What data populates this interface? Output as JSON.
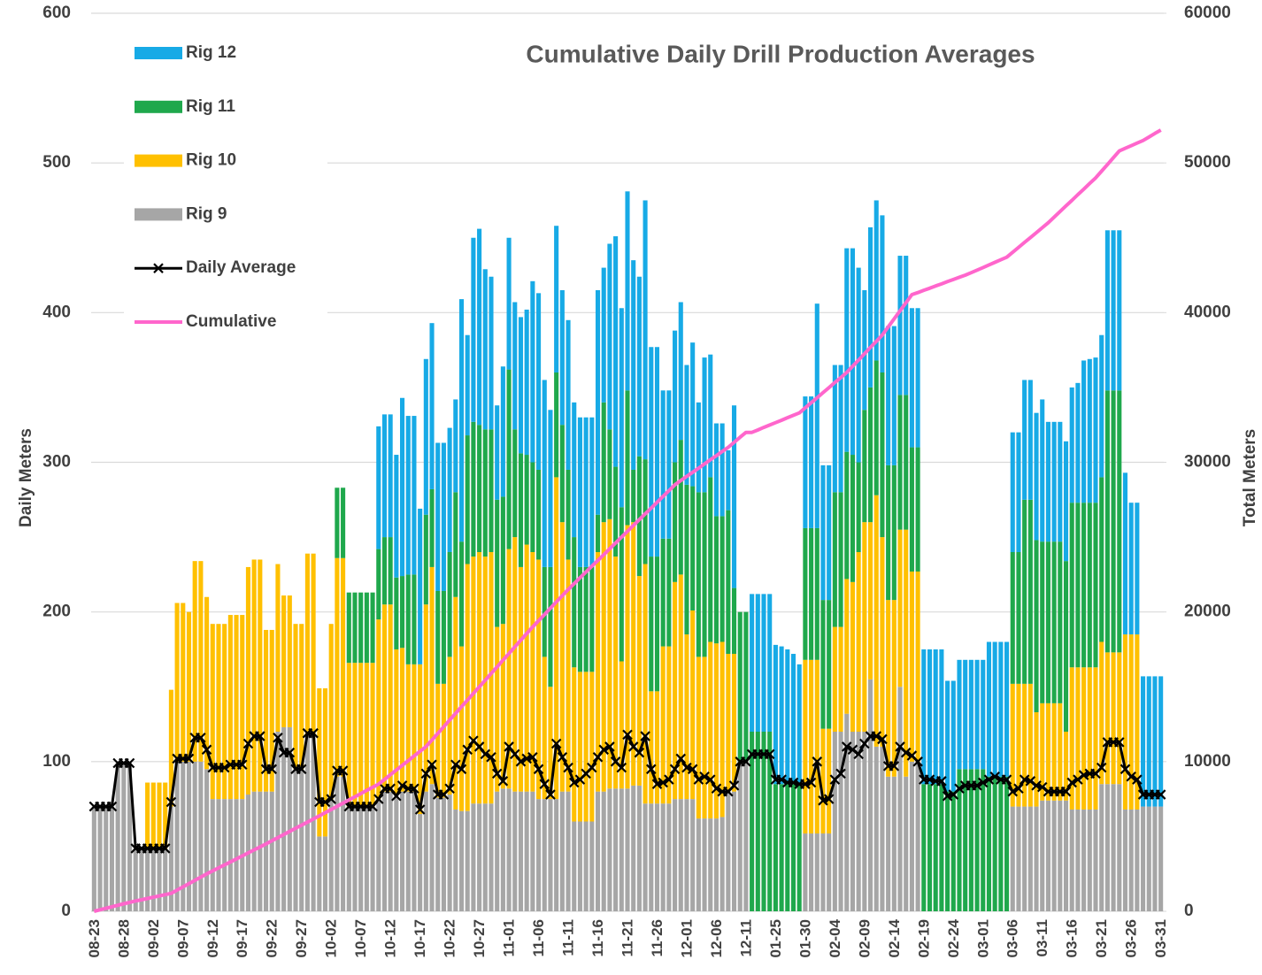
{
  "chart_data": {
    "type": "bar",
    "stacked": true,
    "title": "Cumulative Daily Drill Production Averages",
    "y_label": "Daily Meters",
    "y2_label": "Total Meters",
    "ylim": [
      0,
      600
    ],
    "yticks": [
      0,
      100,
      200,
      300,
      400,
      500,
      600
    ],
    "y2lim": [
      0,
      60000
    ],
    "y2ticks": [
      0,
      10000,
      20000,
      30000,
      40000,
      50000,
      60000
    ],
    "grid": true,
    "legend": "upper left",
    "categories": [
      "08-23",
      null,
      null,
      null,
      null,
      "08-28",
      null,
      null,
      null,
      null,
      "09-02",
      null,
      null,
      null,
      null,
      "09-07",
      null,
      null,
      null,
      null,
      "09-12",
      null,
      null,
      null,
      null,
      "09-17",
      null,
      null,
      null,
      null,
      "09-22",
      null,
      null,
      null,
      null,
      "09-27",
      null,
      null,
      null,
      null,
      "10-02",
      null,
      null,
      null,
      null,
      "10-07",
      null,
      null,
      null,
      null,
      "10-12",
      null,
      null,
      null,
      null,
      "10-17",
      null,
      null,
      null,
      null,
      "10-22",
      null,
      null,
      null,
      null,
      "10-27",
      null,
      null,
      null,
      null,
      "11-01",
      null,
      null,
      null,
      null,
      "11-06",
      null,
      null,
      null,
      null,
      "11-11",
      null,
      null,
      null,
      null,
      "11-16",
      null,
      null,
      null,
      null,
      "11-21",
      null,
      null,
      null,
      null,
      "11-26",
      null,
      null,
      null,
      null,
      "12-01",
      null,
      null,
      null,
      null,
      "12-06",
      null,
      null,
      null,
      null,
      "12-11",
      null,
      null,
      null,
      null,
      "01-25",
      null,
      null,
      null,
      null,
      "01-30",
      null,
      null,
      null,
      null,
      "02-04",
      null,
      null,
      null,
      null,
      "02-09",
      null,
      null,
      null,
      null,
      "02-14",
      null,
      null,
      null,
      null,
      "02-19",
      null,
      null,
      null,
      null,
      "02-24",
      null,
      null,
      null,
      null,
      "03-01",
      null,
      null,
      null,
      null,
      "03-06",
      null,
      null,
      null,
      null,
      "03-11",
      null,
      null,
      null,
      null,
      "03-16",
      null,
      null,
      null,
      null,
      "03-21",
      null,
      null,
      null,
      null,
      "03-26",
      null,
      null,
      null,
      null,
      "03-31"
    ],
    "series": [
      {
        "name": "Rig 12",
        "type": "bar",
        "color": "#17aae6",
        "values": [
          0,
          0,
          0,
          0,
          0,
          0,
          0,
          0,
          0,
          0,
          0,
          0,
          0,
          0,
          0,
          0,
          0,
          0,
          0,
          0,
          0,
          0,
          0,
          0,
          0,
          0,
          0,
          0,
          0,
          0,
          0,
          0,
          0,
          0,
          0,
          0,
          0,
          0,
          0,
          0,
          0,
          0,
          0,
          0,
          0,
          0,
          0,
          0,
          82,
          82,
          82,
          82,
          119,
          106,
          106,
          104,
          104,
          111,
          99,
          99,
          83,
          62,
          162,
          67,
          123,
          131,
          107,
          102,
          63,
          87,
          88,
          85,
          91,
          97,
          121,
          118,
          125,
          105,
          98,
          90,
          100,
          90,
          100,
          100,
          100,
          150,
          90,
          124,
          154,
          133,
          133,
          140,
          120,
          173,
          140,
          140,
          99,
          99,
          88,
          92,
          80,
          96,
          60,
          90,
          82,
          62,
          62,
          40,
          122,
          0,
          0,
          92,
          92,
          92,
          92,
          93,
          92,
          90,
          87,
          80,
          88,
          88,
          150,
          90,
          90,
          85,
          85,
          136,
          138,
          130,
          80,
          107,
          107,
          105,
          93,
          93,
          93,
          93,
          93,
          93,
          90,
          90,
          90,
          90,
          74,
          74,
          73,
          73,
          73,
          73,
          73,
          90,
          90,
          90,
          90,
          80,
          80,
          80,
          80,
          85,
          95,
          80,
          80,
          80,
          80,
          77,
          80,
          95,
          96,
          97,
          95,
          107,
          107,
          107,
          108,
          88,
          88,
          87,
          87,
          87,
          87
        ]
      },
      {
        "name": "Rig 11",
        "type": "bar",
        "color": "#1fa84c",
        "values": [
          0,
          0,
          0,
          0,
          0,
          0,
          0,
          0,
          0,
          0,
          0,
          0,
          0,
          0,
          0,
          0,
          0,
          0,
          0,
          0,
          0,
          0,
          0,
          0,
          0,
          0,
          0,
          0,
          0,
          0,
          0,
          0,
          0,
          0,
          0,
          0,
          0,
          0,
          0,
          0,
          0,
          47,
          47,
          47,
          47,
          47,
          47,
          47,
          47,
          45,
          45,
          48,
          48,
          60,
          60,
          0,
          60,
          52,
          62,
          62,
          70,
          70,
          70,
          86,
          90,
          85,
          85,
          82,
          85,
          85,
          120,
          72,
          76,
          60,
          60,
          60,
          60,
          80,
          70,
          65,
          60,
          87,
          70,
          70,
          70,
          25,
          80,
          60,
          60,
          103,
          90,
          35,
          80,
          70,
          90,
          90,
          72,
          72,
          80,
          90,
          100,
          83,
          110,
          110,
          110,
          85,
          84,
          96,
          44,
          100,
          100,
          120,
          120,
          120,
          120,
          85,
          85,
          85,
          85,
          85,
          88,
          88,
          88,
          86,
          86,
          90,
          90,
          85,
          85,
          60,
          75,
          90,
          90,
          110,
          90,
          90,
          90,
          90,
          83,
          83,
          85,
          85,
          85,
          85,
          80,
          80,
          95,
          95,
          95,
          95,
          95,
          90,
          90,
          90,
          90,
          88,
          88,
          123,
          123,
          115,
          108,
          108,
          108,
          108,
          114,
          110,
          110,
          110,
          110,
          110,
          110,
          175,
          175,
          175,
          0,
          0,
          0,
          0,
          0,
          0,
          0
        ]
      },
      {
        "name": "Rig 10",
        "type": "bar",
        "color": "#ffc000",
        "values": [
          0,
          0,
          0,
          0,
          0,
          0,
          0,
          0,
          0,
          44,
          44,
          44,
          44,
          78,
          106,
          106,
          100,
          134,
          134,
          115,
          117,
          117,
          117,
          123,
          123,
          123,
          152,
          155,
          155,
          108,
          108,
          112,
          88,
          88,
          97,
          97,
          121,
          121,
          99,
          99,
          117,
          146,
          146,
          96,
          96,
          96,
          96,
          96,
          120,
          125,
          125,
          97,
          96,
          85,
          85,
          100,
          125,
          145,
          76,
          76,
          92,
          142,
          110,
          165,
          165,
          168,
          165,
          168,
          110,
          110,
          160,
          170,
          150,
          165,
          160,
          160,
          95,
          75,
          215,
          180,
          155,
          103,
          100,
          100,
          100,
          160,
          180,
          180,
          155,
          85,
          176,
          176,
          140,
          160,
          75,
          75,
          105,
          105,
          145,
          150,
          110,
          126,
          108,
          108,
          118,
          117,
          117,
          92,
          92,
          0,
          0,
          0,
          0,
          0,
          0,
          0,
          0,
          0,
          0,
          0,
          116,
          116,
          116,
          70,
          70,
          70,
          70,
          90,
          100,
          120,
          140,
          105,
          168,
          140,
          118,
          118,
          105,
          165,
          127,
          127,
          0,
          0,
          0,
          0,
          0,
          0,
          0,
          0,
          0,
          0,
          0,
          0,
          0,
          0,
          0,
          82,
          82,
          82,
          82,
          63,
          65,
          65,
          65,
          65,
          46,
          95,
          95,
          95,
          95,
          95,
          95,
          88,
          88,
          88,
          117,
          117,
          117,
          0,
          0,
          0,
          0
        ]
      },
      {
        "name": "Rig 9",
        "type": "bar",
        "color": "#a6a6a6",
        "values": [
          70,
          70,
          70,
          70,
          99,
          99,
          99,
          42,
          42,
          42,
          42,
          42,
          42,
          70,
          100,
          100,
          100,
          100,
          100,
          95,
          75,
          75,
          75,
          75,
          75,
          75,
          78,
          80,
          80,
          80,
          80,
          120,
          123,
          123,
          95,
          95,
          118,
          118,
          50,
          50,
          75,
          90,
          90,
          70,
          70,
          70,
          70,
          70,
          75,
          80,
          80,
          78,
          80,
          80,
          80,
          65,
          80,
          85,
          76,
          76,
          78,
          68,
          67,
          67,
          72,
          72,
          72,
          72,
          80,
          82,
          82,
          80,
          80,
          80,
          80,
          75,
          75,
          75,
          75,
          80,
          80,
          60,
          60,
          60,
          60,
          80,
          80,
          82,
          82,
          82,
          82,
          84,
          84,
          72,
          72,
          72,
          72,
          72,
          75,
          75,
          75,
          75,
          62,
          62,
          62,
          62,
          63,
          80,
          80,
          100,
          100,
          0,
          0,
          0,
          0,
          0,
          0,
          0,
          0,
          0,
          52,
          52,
          52,
          52,
          52,
          120,
          120,
          132,
          120,
          120,
          120,
          155,
          110,
          110,
          90,
          90,
          150,
          90,
          100,
          100,
          0,
          0,
          0,
          0,
          0,
          0,
          0,
          0,
          0,
          0,
          0,
          0,
          0,
          0,
          0,
          70,
          70,
          70,
          70,
          70,
          74,
          74,
          74,
          74,
          74,
          68,
          68,
          68,
          68,
          68,
          85,
          85,
          85,
          85,
          68,
          68,
          68,
          70,
          70,
          70,
          70
        ]
      },
      {
        "name": "Daily Average",
        "type": "line",
        "marker": "x",
        "color": "#000000",
        "values": [
          70,
          70,
          70,
          70,
          99,
          99,
          99,
          42,
          42,
          42,
          42,
          42,
          42,
          73,
          102,
          102,
          102,
          116,
          116,
          108,
          96,
          96,
          96,
          98,
          98,
          98,
          112,
          117,
          117,
          95,
          95,
          116,
          106,
          106,
          95,
          95,
          119,
          119,
          73,
          73,
          75,
          94,
          94,
          70,
          70,
          70,
          70,
          70,
          75,
          82,
          82,
          77,
          84,
          82,
          82,
          68,
          92,
          98,
          78,
          78,
          82,
          98,
          95,
          108,
          114,
          110,
          105,
          103,
          92,
          87,
          110,
          105,
          100,
          102,
          103,
          95,
          85,
          78,
          112,
          103,
          96,
          86,
          88,
          92,
          96,
          103,
          108,
          110,
          100,
          96,
          118,
          110,
          106,
          117,
          95,
          85,
          86,
          88,
          95,
          102,
          96,
          95,
          88,
          90,
          88,
          82,
          80,
          80,
          84,
          100,
          100,
          105,
          105,
          105,
          105,
          88,
          88,
          86,
          86,
          85,
          85,
          86,
          100,
          74,
          75,
          88,
          92,
          110,
          108,
          105,
          112,
          117,
          117,
          115,
          97,
          97,
          110,
          106,
          104,
          100,
          88,
          88,
          87,
          87,
          77,
          78,
          82,
          84,
          84,
          84,
          86,
          88,
          90,
          88,
          88,
          80,
          82,
          88,
          87,
          84,
          83,
          80,
          80,
          80,
          80,
          86,
          88,
          91,
          92,
          92,
          96,
          113,
          113,
          113,
          95,
          90,
          88,
          78,
          78,
          78,
          78
        ]
      },
      {
        "name": "Cumulative",
        "type": "line",
        "axis": "y2",
        "color": "#ff66cc",
        "values": [
          0,
          100,
          200,
          300,
          400,
          500,
          600,
          690,
          770,
          860,
          940,
          1030,
          1110,
          1200,
          1420,
          1630,
          1850,
          2070,
          2280,
          2500,
          2700,
          2900,
          3100,
          3300,
          3500,
          3700,
          3900,
          4100,
          4300,
          4500,
          4710,
          4920,
          5130,
          5340,
          5550,
          5750,
          5960,
          6170,
          6380,
          6590,
          6800,
          7010,
          7230,
          7440,
          7650,
          7860,
          8080,
          8290,
          8500,
          8810,
          9130,
          9440,
          9750,
          10060,
          10380,
          10690,
          11000,
          11440,
          11890,
          12330,
          12780,
          13220,
          13670,
          14110,
          14560,
          15000,
          15440,
          15890,
          16330,
          16780,
          17220,
          17670,
          18110,
          18560,
          19000,
          19420,
          19830,
          20250,
          20670,
          21080,
          21500,
          21890,
          22280,
          22670,
          23060,
          23440,
          23830,
          24220,
          24610,
          25000,
          25390,
          25780,
          26170,
          26560,
          26940,
          27330,
          27720,
          28110,
          28500,
          28780,
          29060,
          29330,
          29610,
          29890,
          30170,
          30440,
          30720,
          31000,
          31330,
          31670,
          32000,
          32000,
          32160,
          32330,
          32490,
          32650,
          32810,
          32980,
          33140,
          33300,
          33640,
          33980,
          34310,
          34650,
          34990,
          35330,
          35660,
          36000,
          36420,
          36830,
          37250,
          37670,
          38080,
          38500,
          39040,
          39580,
          40120,
          40660,
          41200,
          41340,
          41490,
          41630,
          41780,
          41920,
          42070,
          42210,
          42360,
          42500,
          42670,
          42840,
          43010,
          43190,
          43360,
          43530,
          43700,
          44030,
          44360,
          44690,
          45010,
          45340,
          45670,
          46000,
          46380,
          46750,
          47130,
          47500,
          47880,
          48250,
          48630,
          49000,
          49450,
          49900,
          50350,
          50800,
          50980,
          51150,
          51330,
          51500,
          51730,
          51970,
          52200
        ]
      }
    ]
  }
}
